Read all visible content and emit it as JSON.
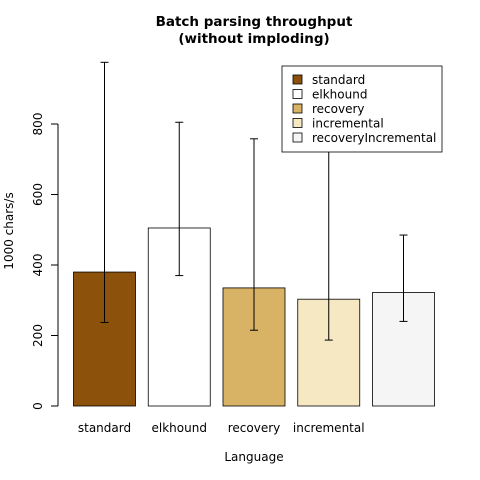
{
  "chart_data": {
    "type": "bar",
    "title": [
      "Batch parsing throughput",
      "(without imploding)"
    ],
    "xlabel": "Language",
    "ylabel": "1000 chars/s",
    "ylim": [
      0,
      1000
    ],
    "yticks": [
      0,
      200,
      400,
      600,
      800
    ],
    "grid": false,
    "legend_position": "top-right",
    "series": [
      {
        "name": "standard",
        "value": 380,
        "err_low": 237,
        "err_high": 975,
        "color": "#8c510a",
        "tick_label": "standard"
      },
      {
        "name": "elkhound",
        "value": 505,
        "err_low": 370,
        "err_high": 805,
        "color": "#ffffff",
        "tick_label": "elkhound"
      },
      {
        "name": "recovery",
        "value": 335,
        "err_low": 215,
        "err_high": 758,
        "color": "#d8b365",
        "tick_label": "recovery"
      },
      {
        "name": "incremental",
        "value": 303,
        "err_low": 187,
        "err_high": 785,
        "color": "#f6e8c3",
        "tick_label": "incremental"
      },
      {
        "name": "recoveryIncremental",
        "value": 322,
        "err_low": 240,
        "err_high": 485,
        "color": "#f5f5f5",
        "tick_label": ""
      }
    ]
  }
}
